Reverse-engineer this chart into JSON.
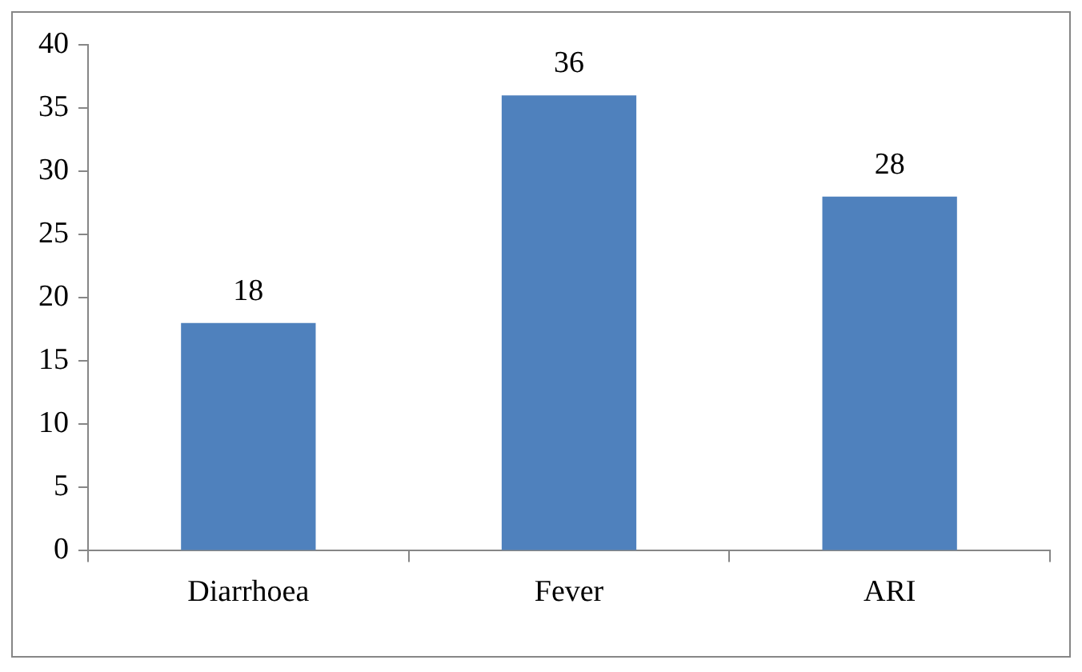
{
  "chart_data": {
    "type": "bar",
    "categories": [
      "Diarrhoea",
      "Fever",
      "ARI"
    ],
    "values": [
      18,
      36,
      28
    ],
    "color": "#4f81bd",
    "ylim": [
      0,
      40
    ],
    "yticks": [
      0,
      5,
      10,
      15,
      20,
      25,
      30,
      35,
      40
    ],
    "grid": false,
    "legend": false,
    "data_labels": true
  }
}
